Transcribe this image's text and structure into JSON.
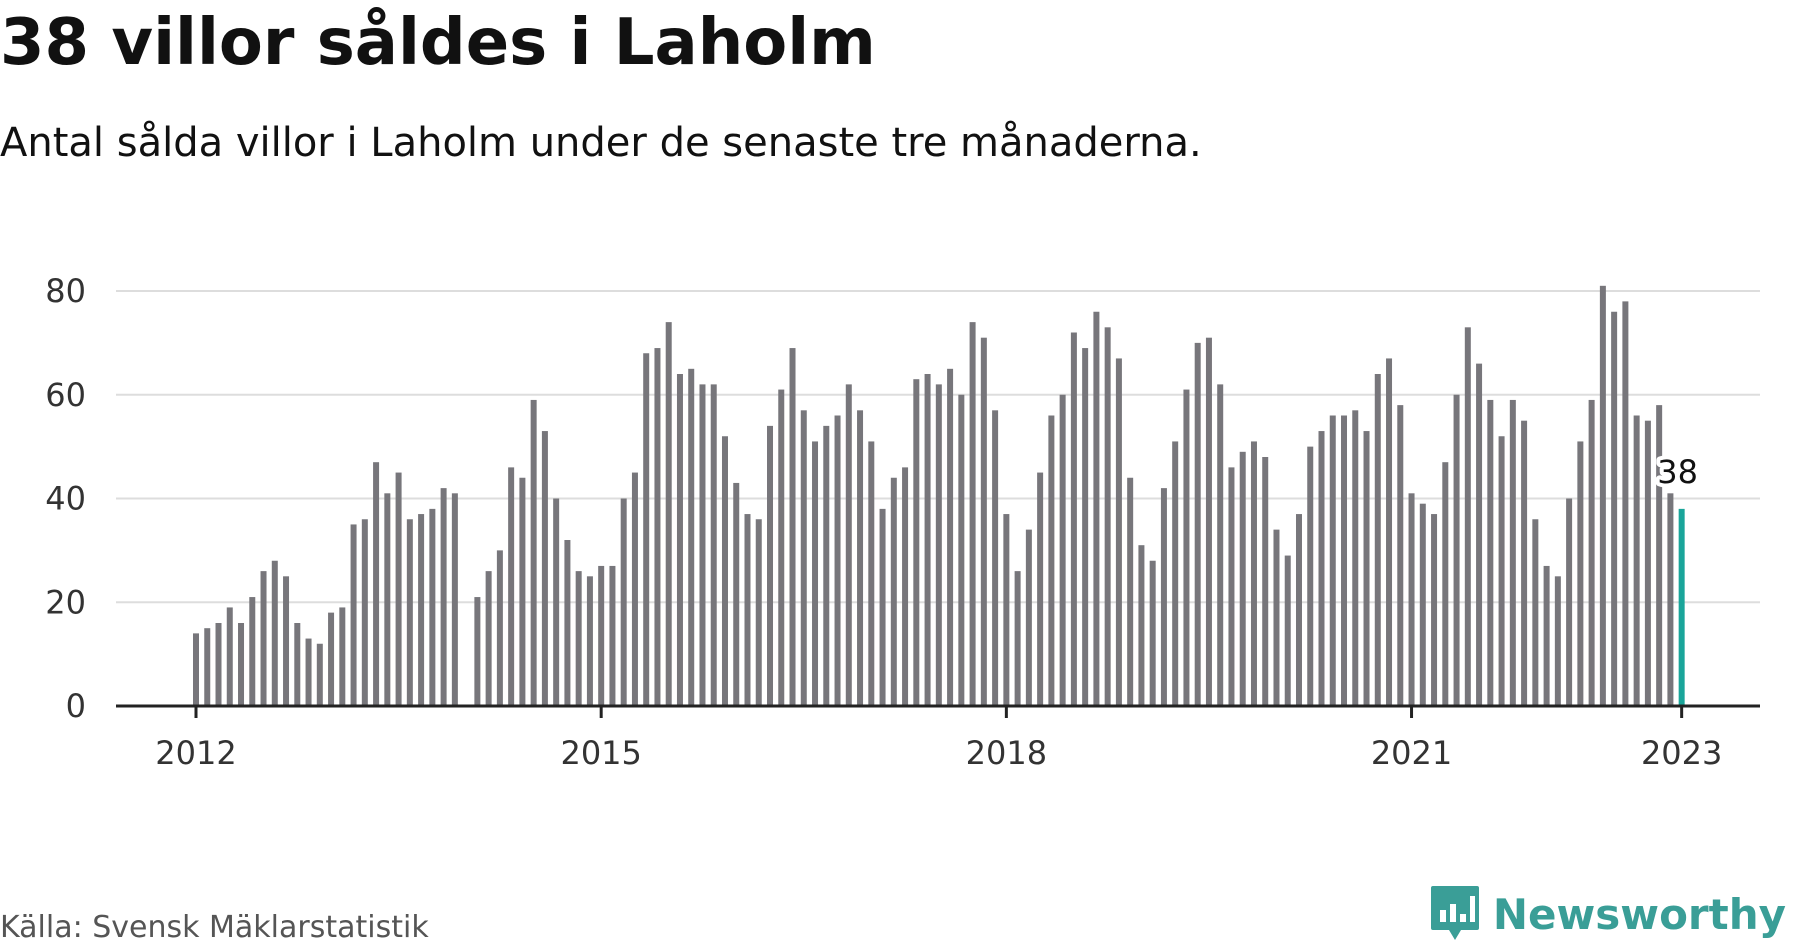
{
  "header": {
    "title": "38 villor såldes i Laholm",
    "subtitle": "Antal sålda villor i Laholm under de senaste tre månaderna."
  },
  "footer": {
    "source": "Källa: Svensk Mäklarstatistik",
    "brand": "Newsworthy"
  },
  "colors": {
    "bar": "#77767b",
    "highlight": "#1aa59a",
    "grid": "#dddddd",
    "axis": "#222222",
    "brand": "#3a9e97"
  },
  "chart_data": {
    "type": "bar",
    "title": "38 villor såldes i Laholm",
    "subtitle": "Antal sålda villor i Laholm under de senaste tre månaderna.",
    "start_month": "2012-01",
    "end_month": "2023-01",
    "values": [
      14,
      15,
      16,
      19,
      16,
      21,
      26,
      28,
      25,
      16,
      13,
      12,
      18,
      19,
      35,
      36,
      47,
      41,
      45,
      36,
      37,
      38,
      42,
      41,
      null,
      21,
      26,
      30,
      46,
      44,
      59,
      53,
      40,
      32,
      26,
      25,
      27,
      27,
      40,
      45,
      68,
      69,
      74,
      64,
      65,
      62,
      62,
      52,
      43,
      37,
      36,
      54,
      61,
      69,
      57,
      51,
      54,
      56,
      62,
      57,
      51,
      38,
      44,
      46,
      63,
      64,
      62,
      65,
      60,
      74,
      71,
      57,
      37,
      26,
      34,
      45,
      56,
      60,
      72,
      69,
      76,
      73,
      67,
      44,
      31,
      28,
      42,
      51,
      61,
      70,
      71,
      62,
      46,
      49,
      51,
      48,
      34,
      29,
      37,
      50,
      53,
      56,
      56,
      57,
      53,
      64,
      67,
      58,
      41,
      39,
      37,
      47,
      60,
      73,
      66,
      59,
      52,
      59,
      55,
      36,
      27,
      25,
      40,
      51,
      59,
      81,
      76,
      78,
      56,
      55,
      58,
      41,
      38
    ],
    "highlight_index": 132,
    "highlight_label": "38",
    "x_ticks": [
      "2012",
      "2015",
      "2018",
      "2021",
      "2023"
    ],
    "y_ticks": [
      0,
      20,
      40,
      60,
      80
    ],
    "ylim": [
      0,
      82
    ],
    "grid": true,
    "legend": "none"
  }
}
